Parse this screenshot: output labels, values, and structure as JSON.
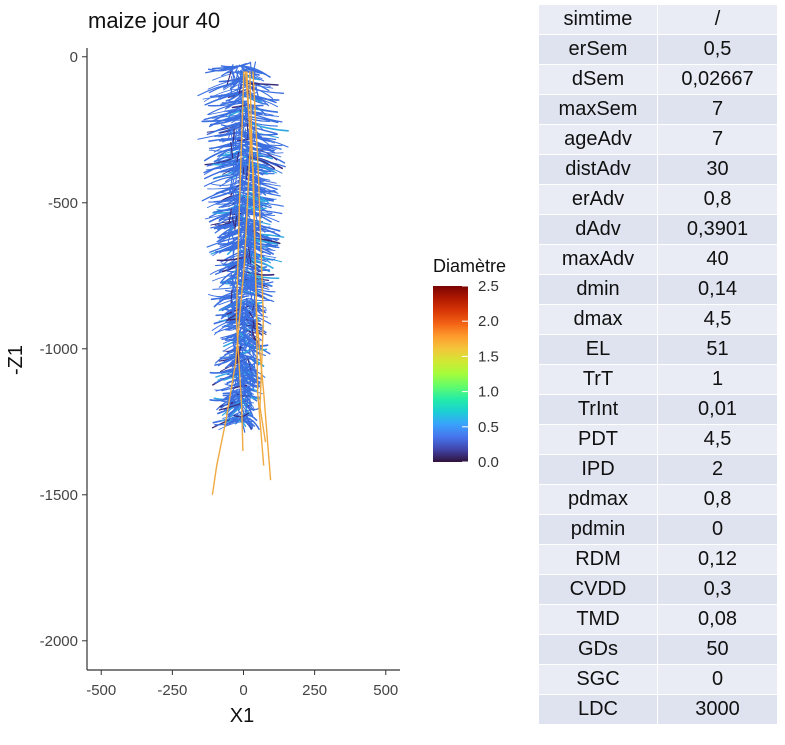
{
  "chart_data": {
    "type": "scatter",
    "title": "maize jour 40",
    "xlabel": "X1",
    "ylabel": "-Z1",
    "xlim": [
      -550,
      550
    ],
    "ylim": [
      -2100,
      30
    ],
    "x_ticks": [
      "-500",
      "-250",
      "0",
      "250",
      "500"
    ],
    "x_tick_values": [
      -500,
      -250,
      0,
      250,
      500
    ],
    "y_ticks": [
      "0",
      "-500",
      "-1000",
      "-1500",
      "-2000"
    ],
    "y_tick_values": [
      0,
      -500,
      -1000,
      -1500,
      -2000
    ],
    "grid": false,
    "legend": {
      "title": "Diamètre",
      "placement": "right",
      "ticks": [
        "2.5",
        "2.0",
        "1.5",
        "1.0",
        "0.5",
        "0.0"
      ],
      "tick_values": [
        2.5,
        2.0,
        1.5,
        1.0,
        0.5,
        0.0
      ],
      "range": [
        0.0,
        2.5
      ]
    },
    "colors": {
      "fine_roots": "#3b6fe0",
      "fine_roots_light": "#2fa8e0",
      "axial_roots": "#f0a940",
      "dark_segments": "#3a2a7a",
      "scale": [
        "#30123b",
        "#4145ab",
        "#4675ed",
        "#39a2fc",
        "#1bcfd4",
        "#24eca6",
        "#61fc6c",
        "#a4fc3b",
        "#d1e834",
        "#f3c63a",
        "#fe9b2d",
        "#f36315",
        "#d93806",
        "#b11901",
        "#7a0403"
      ]
    },
    "series": [
      {
        "shape": "root system (depth envelope)",
        "depth": [
          0,
          -200,
          -400,
          -600,
          -800,
          -1000,
          -1100,
          -1200
        ],
        "left_x": [
          -120,
          -150,
          -120,
          -110,
          -100,
          -90,
          -100,
          -90
        ],
        "right_x": [
          90,
          150,
          110,
          130,
          100,
          60,
          60,
          40
        ],
        "diameter": 0.4
      },
      {
        "shape": "axial roots",
        "points": [
          {
            "x": [
              10,
              20,
              0,
              -30,
              -60,
              -90,
              -110
            ],
            "y": [
              -50,
              -300,
              -700,
              -1050,
              -1250,
              -1400,
              -1500
            ]
          },
          {
            "x": [
              20,
              40,
              50,
              70,
              100
            ],
            "y": [
              -50,
              -500,
              -900,
              -1150,
              -1450
            ]
          },
          {
            "x": [
              10,
              30,
              40,
              50,
              70
            ],
            "y": [
              -50,
              -400,
              -800,
              -1150,
              -1400
            ]
          },
          {
            "x": [
              0,
              -10,
              -20,
              -10,
              0
            ],
            "y": [
              -50,
              -500,
              -900,
              -1200,
              -1350
            ]
          },
          {
            "x": [
              30,
              50,
              70,
              60,
              80
            ],
            "y": [
              -50,
              -400,
              -900,
              -1200,
              -1320
            ]
          }
        ],
        "diameter": 1.4
      }
    ]
  },
  "table": {
    "rows": [
      [
        "simtime",
        "/"
      ],
      [
        "erSem",
        "0,5"
      ],
      [
        "dSem",
        "0,02667"
      ],
      [
        "maxSem",
        "7"
      ],
      [
        "ageAdv",
        "7"
      ],
      [
        "distAdv",
        "30"
      ],
      [
        "erAdv",
        "0,8"
      ],
      [
        "dAdv",
        "0,3901"
      ],
      [
        "maxAdv",
        "40"
      ],
      [
        "dmin",
        "0,14"
      ],
      [
        "dmax",
        "4,5"
      ],
      [
        "EL",
        "51"
      ],
      [
        "TrT",
        "1"
      ],
      [
        "TrInt",
        "0,01"
      ],
      [
        "PDT",
        "4,5"
      ],
      [
        "IPD",
        "2"
      ],
      [
        "pdmax",
        "0,8"
      ],
      [
        "pdmin",
        "0"
      ],
      [
        "RDM",
        "0,12"
      ],
      [
        "CVDD",
        "0,3"
      ],
      [
        "TMD",
        "0,08"
      ],
      [
        "GDs",
        "50"
      ],
      [
        "SGC",
        "0"
      ],
      [
        "LDC",
        "3000"
      ]
    ]
  }
}
